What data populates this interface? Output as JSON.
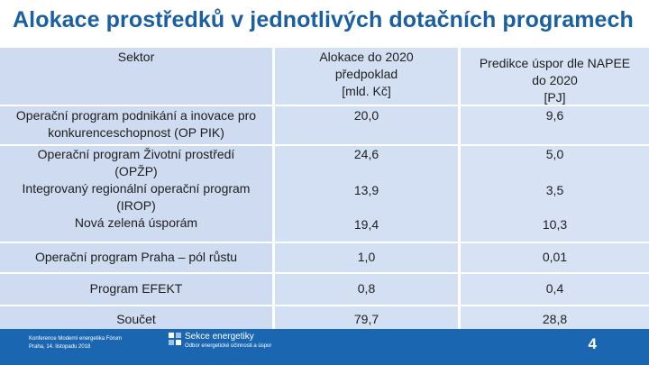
{
  "slide": {
    "title": "Alokace prostředků v jednotlivých dotačních programech",
    "page_number": "4"
  },
  "table": {
    "headers": {
      "sector": "Sektor",
      "alloc_line1": "Alokace do 2020",
      "alloc_line2": "předpoklad",
      "alloc_line3": "[mld. Kč]",
      "pred_line1": "Predikce úspor dle NAPEE",
      "pred_line2": "do 2020",
      "pred_line3": "[PJ]"
    },
    "rows": [
      {
        "name_line1": "Operační program podnikání a inovace pro",
        "name_line2": "konkurenceschopnost (OP PIK)",
        "alloc": "20,0",
        "pred": "9,6"
      },
      {
        "name_line1": "Operační program Životní prostředí",
        "name_line2": "(OPŽP)",
        "alloc": "24,6",
        "pred": "5,0"
      },
      {
        "name_line1": "Integrovaný regionální operační program",
        "name_line2": "(IROP)",
        "alloc": "13,9",
        "pred": "3,5"
      },
      {
        "name_line1": "Nová zelená úsporám",
        "name_line2": "",
        "alloc": "19,4",
        "pred": "10,3"
      },
      {
        "name_line1": "Operační program Praha – pól růstu",
        "name_line2": "",
        "alloc": "1,0",
        "pred": "0,01"
      },
      {
        "name_line1": "Program EFEKT",
        "name_line2": "",
        "alloc": "0,8",
        "pred": "0,4"
      },
      {
        "name_line1": "Součet",
        "name_line2": "",
        "alloc": "79,7",
        "pred": "28,8"
      }
    ]
  },
  "footer": {
    "conf_line1": "Konference Moderní energetika Fórum",
    "conf_line2": "Praha, 14. listopadu 2018",
    "dept_line1": "Sekce energetiky",
    "dept_line2": "Odbor energetické účinnosti a úspor"
  },
  "colors": {
    "title": "#1a5fa0",
    "footer_bg": "#1b66b1",
    "table_band": "#cedbf0"
  }
}
